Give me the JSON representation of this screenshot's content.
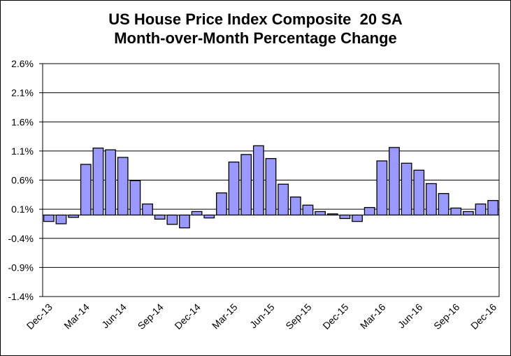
{
  "chart_data": {
    "type": "bar",
    "title_lines": [
      "US House Price Index Composite  20 SA",
      "Month-over-Month Percentage Change"
    ],
    "xlabel": "",
    "ylabel": "",
    "ylim": [
      -1.4,
      2.6
    ],
    "y_ticks": [
      "2.6%",
      "2.1%",
      "1.6%",
      "1.1%",
      "0.6%",
      "0.1%",
      "-0.4%",
      "-0.9%",
      "-1.4%"
    ],
    "y_tick_values": [
      2.6,
      2.1,
      1.6,
      1.1,
      0.6,
      0.1,
      -0.4,
      -0.9,
      -1.4
    ],
    "baseline": 0,
    "x_tick_labels": [
      "Dec-13",
      "Mar-14",
      "Jun-14",
      "Sep-14",
      "Dec-14",
      "Mar-15",
      "Jun-15",
      "Sep-15",
      "Dec-15",
      "Mar-16",
      "Jun-16",
      "Sep-16",
      "Dec-16"
    ],
    "categories": [
      "Dec-13",
      "Jan-14",
      "Feb-14",
      "Mar-14",
      "Apr-14",
      "May-14",
      "Jun-14",
      "Jul-14",
      "Aug-14",
      "Sep-14",
      "Oct-14",
      "Nov-14",
      "Dec-14",
      "Jan-15",
      "Feb-15",
      "Mar-15",
      "Apr-15",
      "May-15",
      "Jun-15",
      "Jul-15",
      "Aug-15",
      "Sep-15",
      "Oct-15",
      "Nov-15",
      "Dec-15",
      "Jan-16",
      "Feb-16",
      "Mar-16",
      "Apr-16",
      "May-16",
      "Jun-16",
      "Jul-16",
      "Aug-16",
      "Sep-16",
      "Oct-16",
      "Nov-16",
      "Dec-16"
    ],
    "values": [
      -0.11,
      -0.15,
      -0.04,
      0.87,
      1.15,
      1.12,
      0.99,
      0.59,
      0.19,
      -0.07,
      -0.16,
      -0.22,
      0.06,
      -0.05,
      0.38,
      0.91,
      1.04,
      1.19,
      0.97,
      0.53,
      0.31,
      0.17,
      0.06,
      0.02,
      -0.06,
      -0.11,
      0.13,
      0.93,
      1.16,
      0.89,
      0.77,
      0.54,
      0.37,
      0.12,
      0.06,
      0.19,
      0.25
    ],
    "bar_color": "#9999ff",
    "grid": true
  }
}
